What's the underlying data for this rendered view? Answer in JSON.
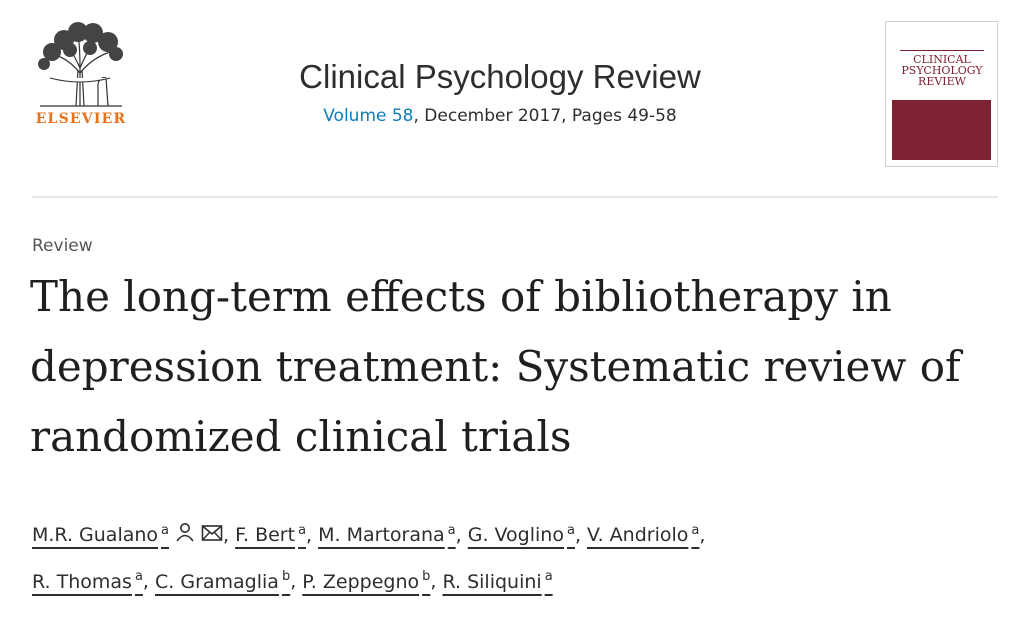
{
  "publisher": {
    "name": "ELSEVIER"
  },
  "journal": {
    "title": "Clinical Psychology Review",
    "volume_link": "Volume 58",
    "issue_rest": ", December 2017, Pages 49-58"
  },
  "cover": {
    "title_line1": "CLINICAL",
    "title_line2": "PSYCHOLOGY",
    "title_line3": "REVIEW"
  },
  "article": {
    "type": "Review",
    "title": "The long-term effects of bibliotherapy in depression treatment: Systematic review of randomized clinical trials"
  },
  "authors": [
    {
      "name": "M.R. Gualano",
      "aff": "a",
      "icons": [
        "person-icon",
        "envelope-icon"
      ]
    },
    {
      "name": "F. Bert",
      "aff": "a"
    },
    {
      "name": "M. Martorana",
      "aff": "a"
    },
    {
      "name": "G. Voglino",
      "aff": "a"
    },
    {
      "name": "V. Andriolo",
      "aff": "a"
    },
    {
      "name": "R. Thomas",
      "aff": "a"
    },
    {
      "name": "C. Gramaglia",
      "aff": "b"
    },
    {
      "name": "P. Zeppegno",
      "aff": "b"
    },
    {
      "name": "R. Siliquini",
      "aff": "a"
    }
  ],
  "colors": {
    "elsevier_orange": "#e9711c",
    "link_blue": "#0c7dbb",
    "cover_maroon": "#7d2333"
  }
}
